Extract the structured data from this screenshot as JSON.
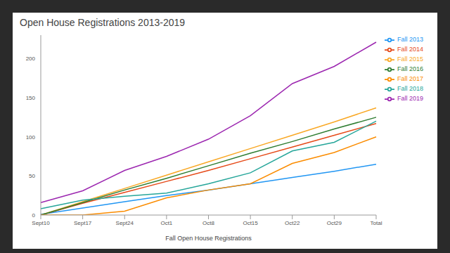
{
  "chart_data": {
    "type": "line",
    "title": "Open House Registrations 2013-2019",
    "x_label": "Fall Open House Registrations",
    "categories": [
      "Sept10",
      "Sept17",
      "Sept24",
      "Oct1",
      "Oct8",
      "Oct15",
      "Oct22",
      "Oct29",
      "Total"
    ],
    "series": [
      {
        "name": "Fall 2013",
        "color": "#2196f3",
        "values": [
          1,
          9,
          17,
          25,
          32,
          40,
          48,
          56,
          65
        ]
      },
      {
        "name": "Fall 2014",
        "color": "#e64a19",
        "values": [
          0,
          15,
          29,
          43,
          57,
          72,
          87,
          102,
          117
        ]
      },
      {
        "name": "Fall 2015",
        "color": "#f9a825",
        "values": [
          0,
          17,
          34,
          51,
          68,
          85,
          102,
          119,
          137
        ]
      },
      {
        "name": "Fall 2016",
        "color": "#2e7d32",
        "values": [
          0,
          16,
          32,
          47,
          63,
          79,
          94,
          110,
          125
        ]
      },
      {
        "name": "Fall 2017",
        "color": "#fb8c00",
        "values": [
          0,
          0,
          5,
          22,
          32,
          40,
          66,
          80,
          100
        ]
      },
      {
        "name": "Fall 2018",
        "color": "#26a69a",
        "values": [
          8,
          19,
          24,
          28,
          40,
          54,
          82,
          93,
          120
        ]
      },
      {
        "name": "Fall 2019",
        "color": "#9c27b0",
        "values": [
          16,
          31,
          57,
          75,
          97,
          127,
          168,
          190,
          221
        ]
      }
    ],
    "ylim": [
      0,
      230
    ],
    "yticks": [
      0,
      50,
      100,
      150,
      200
    ],
    "grid": false,
    "legend": "right"
  }
}
